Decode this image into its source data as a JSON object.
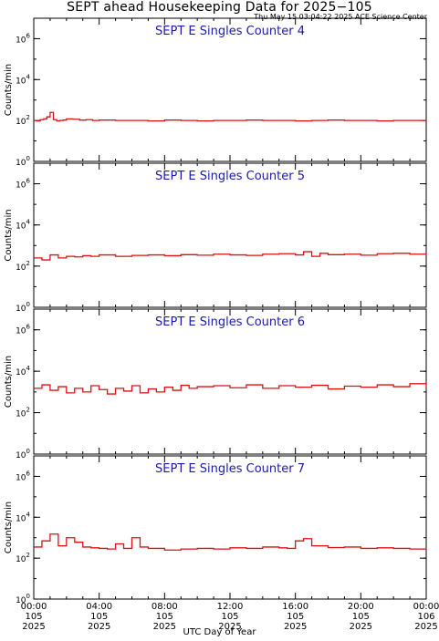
{
  "title": "SEPT ahead Housekeeping Data for 2025−105",
  "timestamp": "Thu May 15 03:04:22 2025 ACE Science Center",
  "xlabel": "UTC Day of Year",
  "colors": {
    "line": "#dd1111",
    "panel_title": "#1a1aaa",
    "axis": "#000000"
  },
  "x_ticks": [
    {
      "hour": 0,
      "time": "00:00",
      "doy": "105",
      "year": "2025"
    },
    {
      "hour": 4,
      "time": "04:00",
      "doy": "105",
      "year": "2025"
    },
    {
      "hour": 8,
      "time": "08:00",
      "doy": "105",
      "year": "2025"
    },
    {
      "hour": 12,
      "time": "12:00",
      "doy": "105",
      "year": "2025"
    },
    {
      "hour": 16,
      "time": "16:00",
      "doy": "105",
      "year": "2025"
    },
    {
      "hour": 20,
      "time": "20:00",
      "doy": "105",
      "year": "2025"
    },
    {
      "hour": 24,
      "time": "00:00",
      "doy": "106",
      "year": "2025"
    }
  ],
  "chart_data": [
    {
      "type": "line",
      "step": true,
      "scale": "log",
      "title": "SEPT E Singles Counter 4",
      "ylabel": "Counts/min",
      "xlim": [
        0,
        24
      ],
      "ylim": [
        1,
        10000000
      ],
      "y_ticks": [
        {
          "v": 1,
          "base": "10",
          "exp": "0"
        },
        {
          "v": 100,
          "base": "10",
          "exp": "2"
        },
        {
          "v": 10000,
          "base": "10",
          "exp": "4"
        },
        {
          "v": 1000000,
          "base": "10",
          "exp": "6"
        }
      ],
      "x": [
        0,
        0.2,
        0.4,
        0.6,
        0.8,
        1.0,
        1.2,
        1.4,
        1.6,
        1.8,
        2.0,
        2.4,
        2.8,
        3.2,
        3.6,
        4.0,
        5,
        6,
        7,
        8,
        9,
        10,
        11,
        12,
        13,
        14,
        15,
        16,
        17,
        18,
        19,
        20,
        21,
        22,
        23,
        24
      ],
      "values": [
        100,
        95,
        110,
        120,
        150,
        250,
        110,
        95,
        100,
        105,
        120,
        115,
        105,
        110,
        100,
        105,
        100,
        100,
        95,
        105,
        100,
        95,
        100,
        100,
        105,
        100,
        100,
        95,
        100,
        105,
        100,
        100,
        95,
        100,
        100,
        95
      ]
    },
    {
      "type": "line",
      "step": true,
      "scale": "log",
      "title": "SEPT E Singles Counter 5",
      "ylabel": "Counts/min",
      "xlim": [
        0,
        24
      ],
      "ylim": [
        1,
        10000000
      ],
      "y_ticks": [
        {
          "v": 1,
          "base": "10",
          "exp": "0"
        },
        {
          "v": 100,
          "base": "10",
          "exp": "2"
        },
        {
          "v": 10000,
          "base": "10",
          "exp": "4"
        },
        {
          "v": 1000000,
          "base": "10",
          "exp": "6"
        }
      ],
      "x": [
        0,
        0.5,
        1,
        1.5,
        2,
        2.5,
        3,
        3.5,
        4,
        5,
        6,
        7,
        8,
        9,
        10,
        11,
        12,
        13,
        14,
        15,
        16,
        16.5,
        17,
        17.5,
        18,
        19,
        20,
        21,
        22,
        23,
        24
      ],
      "values": [
        250,
        200,
        350,
        250,
        300,
        280,
        320,
        300,
        350,
        300,
        330,
        350,
        320,
        360,
        340,
        380,
        350,
        330,
        380,
        400,
        350,
        500,
        300,
        420,
        360,
        380,
        340,
        400,
        420,
        380,
        350
      ]
    },
    {
      "type": "line",
      "step": true,
      "scale": "log",
      "title": "SEPT E Singles Counter 6",
      "ylabel": "Counts/min",
      "xlim": [
        0,
        24
      ],
      "ylim": [
        1,
        10000000
      ],
      "y_ticks": [
        {
          "v": 1,
          "base": "10",
          "exp": "0"
        },
        {
          "v": 100,
          "base": "10",
          "exp": "2"
        },
        {
          "v": 10000,
          "base": "10",
          "exp": "4"
        },
        {
          "v": 1000000,
          "base": "10",
          "exp": "6"
        }
      ],
      "x": [
        0,
        0.5,
        1,
        1.5,
        2,
        2.5,
        3,
        3.5,
        4,
        4.5,
        5,
        5.5,
        6,
        6.5,
        7,
        7.5,
        8,
        8.5,
        9,
        9.5,
        10,
        11,
        12,
        13,
        14,
        15,
        16,
        17,
        18,
        19,
        20,
        21,
        22,
        23,
        24
      ],
      "values": [
        1500,
        2200,
        1200,
        1800,
        900,
        1500,
        1000,
        2000,
        1300,
        800,
        1500,
        1100,
        2000,
        900,
        1400,
        1000,
        1700,
        1200,
        2100,
        1500,
        1800,
        2000,
        1600,
        2200,
        1500,
        2000,
        1700,
        2100,
        1400,
        1900,
        1700,
        2200,
        1800,
        2500,
        1600
      ]
    },
    {
      "type": "line",
      "step": true,
      "scale": "log",
      "title": "SEPT E Singles Counter 7",
      "ylabel": "Counts/min",
      "xlim": [
        0,
        24
      ],
      "ylim": [
        1,
        10000000
      ],
      "y_ticks": [
        {
          "v": 1,
          "base": "10",
          "exp": "0"
        },
        {
          "v": 100,
          "base": "10",
          "exp": "2"
        },
        {
          "v": 10000,
          "base": "10",
          "exp": "4"
        },
        {
          "v": 1000000,
          "base": "10",
          "exp": "6"
        }
      ],
      "x": [
        0,
        0.5,
        1,
        1.5,
        2,
        2.5,
        3,
        3.5,
        4,
        4.5,
        5,
        5.5,
        6,
        6.5,
        7,
        8,
        9,
        10,
        11,
        12,
        13,
        14,
        15,
        15.5,
        16,
        16.5,
        17,
        18,
        19,
        20,
        21,
        22,
        23,
        24
      ],
      "values": [
        350,
        700,
        1500,
        400,
        1000,
        600,
        350,
        320,
        300,
        280,
        500,
        300,
        1000,
        350,
        300,
        250,
        280,
        300,
        280,
        320,
        300,
        350,
        320,
        300,
        700,
        900,
        400,
        330,
        350,
        300,
        320,
        300,
        280,
        250
      ]
    }
  ]
}
